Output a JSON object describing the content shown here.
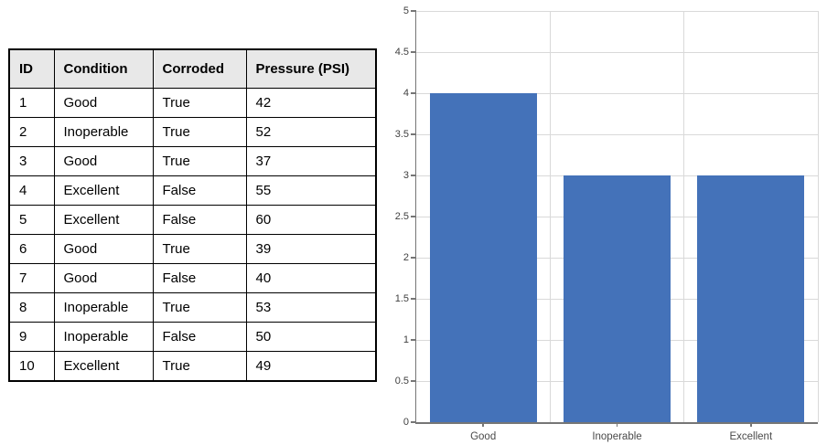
{
  "colors": {
    "bar_fill": "#4472b9",
    "gridline": "#d9d9d9",
    "axis_line": "#767676",
    "tick": "#767676",
    "axis_label_text": "#3f3f3f",
    "table_header_bg": "#e8e8e8",
    "table_border": "#000000",
    "table_text": "#000000"
  },
  "chart_data": [
    {
      "type": "table",
      "columns": [
        "ID",
        "Condition",
        "Corroded",
        "Pressure (PSI)"
      ],
      "rows": [
        [
          "1",
          "Good",
          "True",
          "42"
        ],
        [
          "2",
          "Inoperable",
          "True",
          "52"
        ],
        [
          "3",
          "Good",
          "True",
          "37"
        ],
        [
          "4",
          "Excellent",
          "False",
          "55"
        ],
        [
          "5",
          "Excellent",
          "False",
          "60"
        ],
        [
          "6",
          "Good",
          "True",
          "39"
        ],
        [
          "7",
          "Good",
          "False",
          "40"
        ],
        [
          "8",
          "Inoperable",
          "True",
          "53"
        ],
        [
          "9",
          "Inoperable",
          "False",
          "50"
        ],
        [
          "10",
          "Excellent",
          "True",
          "49"
        ]
      ]
    },
    {
      "type": "bar",
      "categories": [
        "Good",
        "Inoperable",
        "Excellent"
      ],
      "values": [
        4,
        3,
        3
      ],
      "title": "",
      "xlabel": "",
      "ylabel": "",
      "ylim": [
        0,
        5
      ],
      "ytick_step": 0.5,
      "ytick_labels": [
        "0",
        "0.5",
        "1",
        "1.5",
        "2",
        "2.5",
        "3",
        "3.5",
        "4",
        "4.5",
        "5"
      ],
      "grid": true,
      "legend_position": "none",
      "bar_color": "#4472b9"
    }
  ]
}
